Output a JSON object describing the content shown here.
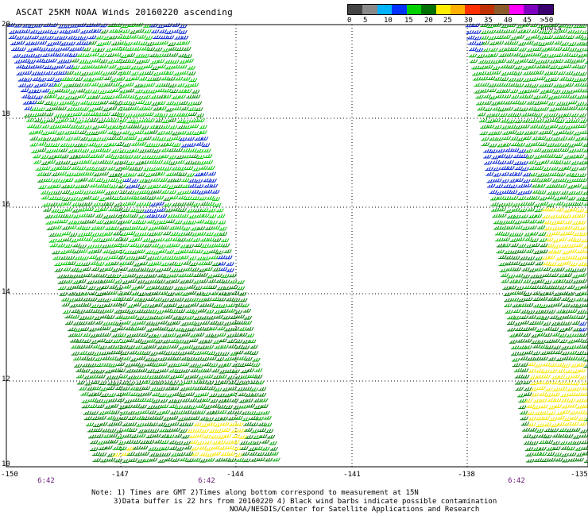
{
  "title": "ASCAT 25KM NOAA Winds 20160220 ascending",
  "legend": {
    "colors": [
      "#444444",
      "#8a8a8a",
      "#00b4ff",
      "#0032ff",
      "#00d000",
      "#007000",
      "#ffee00",
      "#ffb000",
      "#ff3000",
      "#c03000",
      "#8b5a2b",
      "#ff00ff",
      "#8000c0",
      "#3a0070"
    ],
    "labels": [
      "0",
      "5",
      "10",
      "15",
      "20",
      "25",
      "30",
      "35",
      "40",
      "45",
      ">50 knots"
    ]
  },
  "axes": {
    "lat_labels": [
      "20",
      "18",
      "16",
      "14",
      "12",
      "10"
    ],
    "lon_labels": [
      "-150",
      "-147",
      "-144",
      "-141",
      "-138",
      "-135"
    ]
  },
  "time_labels": [
    "6:42",
    "6:42",
    "6:42"
  ],
  "note": {
    "line1": "Note: 1) Times are GMT 2)Times along bottom correspond to measurement at 15N",
    "line2": "3)Data buffer is 22 hrs from 20160220 4) Black wind barbs indicate possible contamination",
    "line3": "NOAA/NESDIS/Center for Satellite Applications and Research"
  },
  "swaths": [
    {
      "name": "west-swath",
      "pass_time": "6:42",
      "wind_regions": [
        "blue barbs northwest corner",
        "light green mid",
        "dark green south",
        "yellow near 10.5N -143"
      ]
    },
    {
      "name": "east-swath",
      "pass_time": "6:42",
      "wind_regions": [
        "dark green",
        "blue near 17N",
        "yellow near 15N and 12N"
      ]
    }
  ]
}
